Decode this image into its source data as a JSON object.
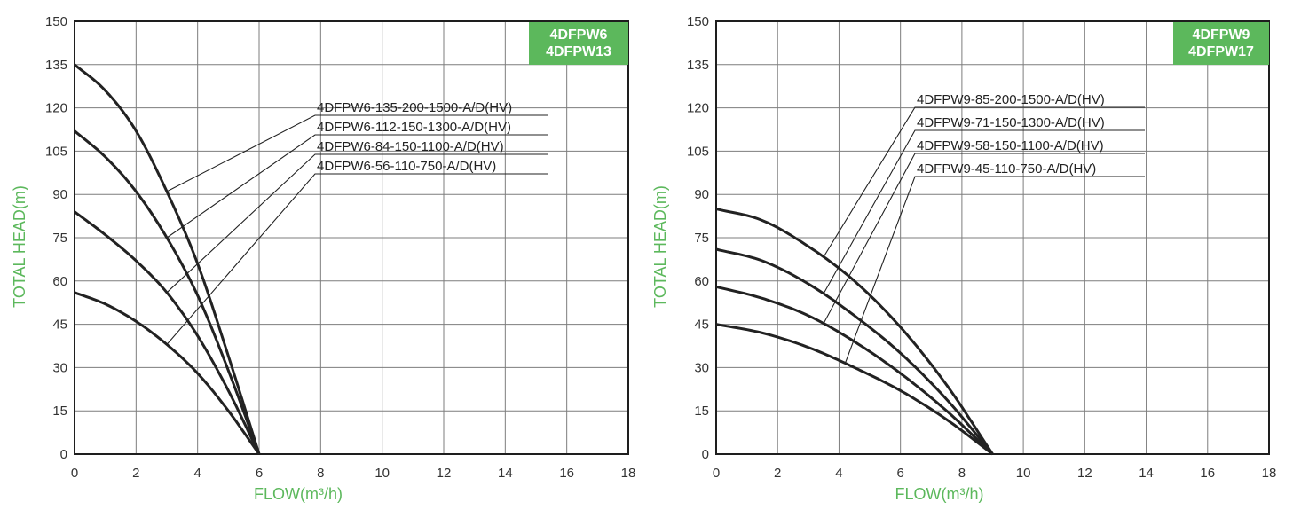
{
  "colors": {
    "accent": "#5cb85c",
    "curve": "#222222",
    "grid": "#7d7d7d"
  },
  "chart_data": [
    {
      "type": "line",
      "badge": [
        "4DFPW6",
        "4DFPW13"
      ],
      "xlabel": "FLOW(m³/h)",
      "ylabel": "TOTAL HEAD(m)",
      "xlim": [
        0,
        18
      ],
      "ylim": [
        0,
        150
      ],
      "xticks": [
        0,
        2,
        4,
        6,
        8,
        10,
        12,
        14,
        16,
        18
      ],
      "yticks": [
        0,
        15,
        30,
        45,
        60,
        75,
        90,
        105,
        120,
        135,
        150
      ],
      "grid": true,
      "series": [
        {
          "name": "4DFPW6-135-200-1500-A/D(HV)",
          "x": [
            0,
            1,
            2,
            3,
            4,
            5,
            6
          ],
          "y": [
            135,
            126,
            112,
            91,
            66,
            34,
            0
          ],
          "leader_x": 3
        },
        {
          "name": "4DFPW6-112-150-1300-A/D(HV)",
          "x": [
            0,
            1,
            2,
            3,
            4,
            5,
            6
          ],
          "y": [
            112,
            103,
            91,
            75,
            55,
            29,
            0
          ],
          "leader_x": 3
        },
        {
          "name": "4DFPW6-84-150-1100-A/D(HV)",
          "x": [
            0,
            1,
            2,
            3,
            4,
            5,
            6
          ],
          "y": [
            84,
            76,
            67,
            56,
            41,
            22,
            0
          ],
          "leader_x": 3
        },
        {
          "name": "4DFPW6-56-110-750-A/D(HV)",
          "x": [
            0,
            1,
            2,
            3,
            4,
            5,
            6
          ],
          "y": [
            56,
            52,
            46,
            38,
            28,
            15,
            0
          ],
          "leader_x": 3
        }
      ]
    },
    {
      "type": "line",
      "badge": [
        "4DFPW9",
        "4DFPW17"
      ],
      "xlabel": "FLOW(m³/h)",
      "ylabel": "TOTAL HEAD(m)",
      "xlim": [
        0,
        18
      ],
      "ylim": [
        0,
        150
      ],
      "xticks": [
        0,
        2,
        4,
        6,
        8,
        10,
        12,
        14,
        16,
        18
      ],
      "yticks": [
        0,
        15,
        30,
        45,
        60,
        75,
        90,
        105,
        120,
        135,
        150
      ],
      "grid": true,
      "series": [
        {
          "name": "4DFPW9-85-200-1500-A/D(HV)",
          "x": [
            0,
            1.5,
            3,
            4.5,
            6,
            7.5,
            9
          ],
          "y": [
            85,
            81,
            72,
            60,
            44,
            24,
            0
          ],
          "leader_x": 3.5
        },
        {
          "name": "4DFPW9-71-150-1300-A/D(HV)",
          "x": [
            0,
            1.5,
            3,
            4.5,
            6,
            7.5,
            9
          ],
          "y": [
            71,
            67,
            59,
            48,
            35,
            19,
            0
          ],
          "leader_x": 3.5
        },
        {
          "name": "4DFPW9-58-150-1100-A/D(HV)",
          "x": [
            0,
            1.5,
            3,
            4.5,
            6,
            7.5,
            9
          ],
          "y": [
            58,
            54,
            48,
            39,
            28,
            15,
            0
          ],
          "leader_x": 3.5
        },
        {
          "name": "4DFPW9-45-110-750-A/D(HV)",
          "x": [
            0,
            1.5,
            3,
            4.5,
            6,
            7.5,
            9
          ],
          "y": [
            45,
            42,
            37,
            30,
            22,
            12,
            0
          ],
          "leader_x": 4.2
        }
      ]
    }
  ]
}
